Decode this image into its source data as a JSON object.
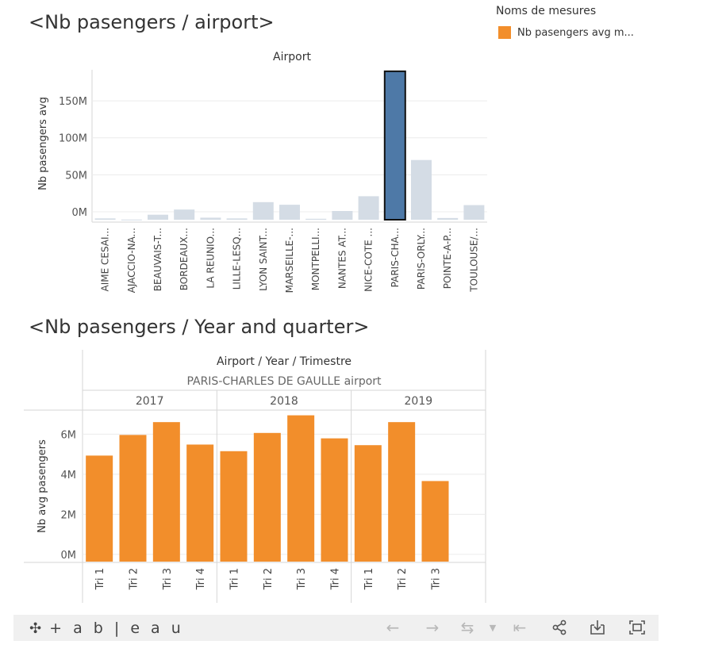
{
  "sheet1": {
    "title": "<Nb pasengers / airport>",
    "header": "Airport",
    "ylabel": "Nb pasengers avg"
  },
  "legend": {
    "title": "Noms de mesures",
    "item_label": "Nb pasengers avg m...",
    "item_color": "#f28e2b"
  },
  "sheet2": {
    "title": "<Nb pasengers / Year and quarter>",
    "header": "Airport / Year / Trimestre",
    "subheader": "PARIS-CHARLES DE GAULLE airport",
    "ylabel": "Nb avg pasengers"
  },
  "chart_data": [
    {
      "type": "bar",
      "title": "<Nb pasengers / airport>",
      "xlabel": "Airport",
      "ylabel": "Nb pasengers avg",
      "ylim": [
        -14000000,
        192000000
      ],
      "yticks": [
        0,
        50000000,
        100000000,
        150000000
      ],
      "ytick_labels": [
        "0M",
        "50M",
        "100M",
        "150M"
      ],
      "categories": [
        "AIME CESAI...",
        "AJACCIO-NA...",
        "BEAUVAIS-T...",
        "BORDEAUX...",
        "LA REUNIO...",
        "LILLE-LESQ...",
        "LYON SAINT...",
        "MARSEILLE-...",
        "MONTPELLI...",
        "NANTES AT...",
        "NICE-COTE ...",
        "PARIS-CHA...",
        "PARIS-ORLY...",
        "POINTE-A-P...",
        "TOULOUSE/..."
      ],
      "values": [
        -9000000,
        -10500000,
        -4000000,
        3000000,
        -8000000,
        -9000000,
        13000000,
        9500000,
        -9500000,
        1000000,
        21000000,
        190000000,
        70000000,
        -8500000,
        9000000
      ],
      "highlighted": "PARIS-CHA...",
      "colors": {
        "default": "#d4dce5",
        "highlight": "#4e79a7",
        "highlight_border": "#111111"
      },
      "grid": true
    },
    {
      "type": "bar",
      "title": "<Nb pasengers / Year and quarter>",
      "header": "Airport / Year / Trimestre",
      "subheader": "PARIS-CHARLES DE GAULLE airport",
      "ylabel": "Nb avg pasengers",
      "ylim": [
        -400000,
        7200000
      ],
      "yticks": [
        0,
        2000000,
        4000000,
        6000000
      ],
      "ytick_labels": [
        "0M",
        "2M",
        "4M",
        "6M"
      ],
      "groups": [
        {
          "year": "2017",
          "quarters": [
            "Tri 1",
            "Tri 2",
            "Tri 3",
            "Tri 4"
          ],
          "values": [
            4930000,
            5960000,
            6600000,
            5480000
          ]
        },
        {
          "year": "2018",
          "quarters": [
            "Tri 1",
            "Tri 2",
            "Tri 3",
            "Tri 4"
          ],
          "values": [
            5150000,
            6060000,
            6940000,
            5790000
          ]
        },
        {
          "year": "2019",
          "quarters": [
            "Tri 1",
            "Tri 2",
            "Tri 3"
          ],
          "values": [
            5450000,
            6600000,
            3660000
          ]
        }
      ],
      "color": "#f28e2b",
      "grid": true
    }
  ],
  "toolbar": {
    "logo": "+ a b | e a u",
    "icons": [
      "tableau-logo-icon",
      "undo-icon",
      "redo-icon",
      "revert-icon",
      "dropdown-icon",
      "reset-icon",
      "share-icon",
      "download-icon",
      "fullscreen-icon"
    ]
  }
}
